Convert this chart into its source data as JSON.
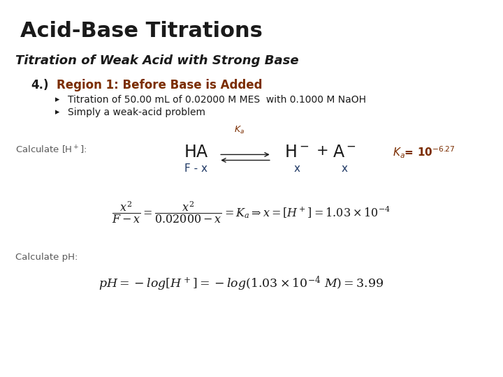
{
  "background_color": "#ffffff",
  "title": "Acid-Base Titrations",
  "subtitle": "Titration of Weak Acid with Strong Base",
  "section_number": "4.)",
  "section_title": "Region 1: Before Base is Added",
  "section_title_color": "#7B2D00",
  "bullet1": "Titration of 50.00 mL of 0.02000 M MES  with 0.1000 M NaOH",
  "bullet2": "Simply a weak-acid problem",
  "orange": "#7B2D00",
  "black": "#1a1a1a",
  "blue": "#1F3864",
  "gray": "#595959",
  "eq_blue": "#1F3864"
}
